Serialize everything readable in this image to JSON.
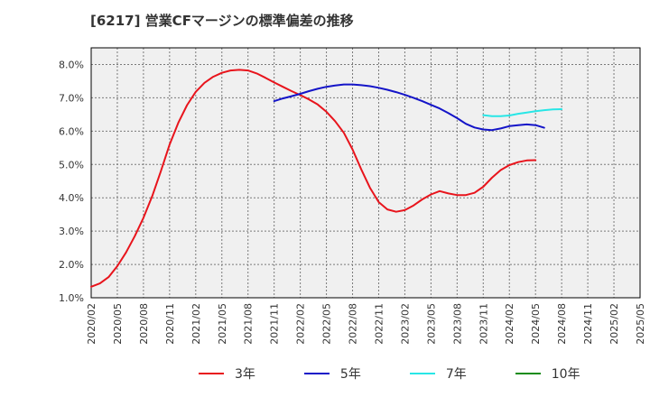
{
  "title": "[6217]  営業CFマージンの標準偏差の推移",
  "colors": {
    "plot_background": "#f0f0f0",
    "grid": "#7a7a7a",
    "axis_text": "#333333"
  },
  "chart_data": {
    "type": "line",
    "title": "[6217]  営業CFマージンの標準偏差の推移",
    "xlabel": "",
    "ylabel": "",
    "x_tick_labels": [
      "2020/02",
      "2020/05",
      "2020/08",
      "2020/11",
      "2021/02",
      "2021/05",
      "2021/08",
      "2021/11",
      "2022/02",
      "2022/05",
      "2022/08",
      "2022/11",
      "2023/02",
      "2023/05",
      "2023/08",
      "2023/11",
      "2024/02",
      "2024/05",
      "2024/08",
      "2024/11",
      "2025/02",
      "2025/05"
    ],
    "y_tick_labels": [
      "1.0%",
      "2.0%",
      "3.0%",
      "4.0%",
      "5.0%",
      "6.0%",
      "7.0%",
      "8.0%"
    ],
    "x_range": [
      "2020/02",
      "2025/05"
    ],
    "ylim": [
      1.0,
      8.5
    ],
    "y_unit": "%",
    "grid": true,
    "legend_position": "bottom",
    "series": [
      {
        "name": "3年",
        "color": "#e8141c",
        "start": "2020/02",
        "values": [
          1.33,
          1.43,
          1.62,
          1.95,
          2.36,
          2.85,
          3.4,
          4.05,
          4.8,
          5.6,
          6.25,
          6.78,
          7.18,
          7.45,
          7.63,
          7.75,
          7.82,
          7.84,
          7.82,
          7.73,
          7.6,
          7.46,
          7.33,
          7.2,
          7.08,
          6.95,
          6.8,
          6.58,
          6.3,
          5.95,
          5.45,
          4.85,
          4.3,
          3.87,
          3.65,
          3.58,
          3.63,
          3.77,
          3.95,
          4.1,
          4.2,
          4.13,
          4.08,
          4.08,
          4.15,
          4.33,
          4.6,
          4.83,
          4.98,
          5.07,
          5.12,
          5.13
        ]
      },
      {
        "name": "5年",
        "color": "#1414c8",
        "start": "2021/11",
        "values": [
          6.9,
          6.98,
          7.05,
          7.12,
          7.2,
          7.27,
          7.33,
          7.37,
          7.4,
          7.4,
          7.38,
          7.35,
          7.3,
          7.24,
          7.17,
          7.09,
          7.0,
          6.9,
          6.79,
          6.68,
          6.54,
          6.39,
          6.22,
          6.11,
          6.05,
          6.03,
          6.08,
          6.15,
          6.18,
          6.2,
          6.18,
          6.1
        ]
      },
      {
        "name": "7年",
        "color": "#28e6e6",
        "start": "2023/11",
        "values": [
          6.48,
          6.45,
          6.45,
          6.47,
          6.52,
          6.56,
          6.6,
          6.63,
          6.65,
          6.66
        ]
      },
      {
        "name": "10年",
        "color": "#148c14",
        "start": "2025/05",
        "values": []
      }
    ]
  },
  "legend": [
    {
      "label": "3年",
      "color": "#e8141c"
    },
    {
      "label": "5年",
      "color": "#1414c8"
    },
    {
      "label": "7年",
      "color": "#28e6e6"
    },
    {
      "label": "10年",
      "color": "#148c14"
    }
  ]
}
